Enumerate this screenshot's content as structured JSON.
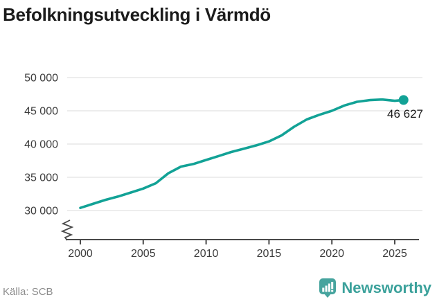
{
  "header": {
    "title": "Befolkningsutveckling i Värmdö"
  },
  "chart_data": {
    "type": "line",
    "title": "Befolkningsutveckling i Värmdö",
    "xlabel": "",
    "ylabel": "",
    "xlim": [
      2000,
      2026
    ],
    "ylim": [
      30000,
      50000
    ],
    "grid": "horizontal",
    "axis_break_bottom_left": true,
    "xticks": [
      2000,
      2005,
      2010,
      2015,
      2020,
      2025
    ],
    "yticks": [
      {
        "value": 30000,
        "label": "30 000"
      },
      {
        "value": 35000,
        "label": "35 000"
      },
      {
        "value": 40000,
        "label": "40 000"
      },
      {
        "value": 45000,
        "label": "45 000"
      },
      {
        "value": 50000,
        "label": "50 000"
      }
    ],
    "series": [
      {
        "name": "Befolkning Värmdö",
        "points": [
          [
            2000,
            30400
          ],
          [
            2001,
            31000
          ],
          [
            2002,
            31600
          ],
          [
            2003,
            32100
          ],
          [
            2004,
            32700
          ],
          [
            2005,
            33300
          ],
          [
            2006,
            34100
          ],
          [
            2007,
            35600
          ],
          [
            2008,
            36600
          ],
          [
            2009,
            37000
          ],
          [
            2010,
            37600
          ],
          [
            2011,
            38200
          ],
          [
            2012,
            38800
          ],
          [
            2013,
            39300
          ],
          [
            2014,
            39800
          ],
          [
            2015,
            40400
          ],
          [
            2016,
            41300
          ],
          [
            2017,
            42600
          ],
          [
            2018,
            43700
          ],
          [
            2019,
            44400
          ],
          [
            2020,
            45000
          ],
          [
            2021,
            45800
          ],
          [
            2022,
            46350
          ],
          [
            2023,
            46600
          ],
          [
            2024,
            46700
          ],
          [
            2025,
            46500
          ],
          [
            2025.7,
            46627
          ]
        ]
      }
    ],
    "end_value": 46627,
    "end_label": "46 627",
    "line_color": "#12a296"
  },
  "colors": {
    "line": "#12a296",
    "endpoint_dot": "#12a296",
    "grid": "#e2e2e2",
    "axis": "#4a4a4a",
    "tick_text": "#3d3d3d",
    "end_label_text": "#1a1a1a",
    "title_text": "#1b1b1b",
    "source_text": "#8c8c8c",
    "logo_teal": "#46a49e",
    "wordmark_teal": "#3ba19b"
  },
  "footer": {
    "source": "Källa: SCB",
    "logo_text": "Newsworthy"
  }
}
